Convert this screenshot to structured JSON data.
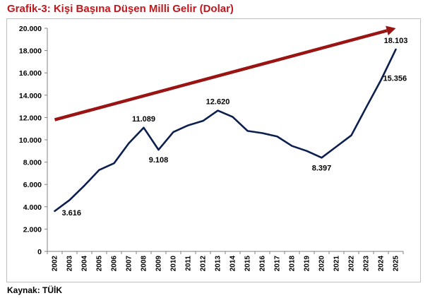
{
  "title": "Grafik-3: Kişi Başına Düşen Milli Gelir (Dolar)",
  "source": "Kaynak: TÜİK",
  "colors": {
    "title": "#c0171c",
    "line": "#0c1f4e",
    "arrow": "#9a1414",
    "axis": "#808080"
  },
  "chart_data": {
    "type": "line",
    "title": "Grafik-3: Kişi Başına Düşen Milli Gelir (Dolar)",
    "xlabel": "",
    "ylabel": "",
    "ylim": [
      0,
      20000
    ],
    "grid": false,
    "legend": "none",
    "yticks": [
      "0",
      "2.000",
      "4.000",
      "6.000",
      "8.000",
      "10.000",
      "12.000",
      "14.000",
      "16.000",
      "18.000",
      "20.000"
    ],
    "x": [
      "2002",
      "2003",
      "2004",
      "2005",
      "2006",
      "2007",
      "2008",
      "2009",
      "2010",
      "2011",
      "2012",
      "2013",
      "2014",
      "2015",
      "2016",
      "2017",
      "2018",
      "2019",
      "2020",
      "2021",
      "2022",
      "2023",
      "2024",
      "2025"
    ],
    "series": [
      {
        "values": [
          3616,
          4600,
          5900,
          7300,
          7900,
          9700,
          11089,
          9108,
          10700,
          11300,
          11700,
          12620,
          12050,
          10800,
          10600,
          10300,
          9450,
          9000,
          8397,
          9400,
          10400,
          12900,
          15356,
          18103
        ]
      }
    ],
    "data_labels": [
      {
        "index": 0,
        "text": "3.616",
        "pos": "below-right"
      },
      {
        "index": 6,
        "text": "11.089",
        "pos": "above"
      },
      {
        "index": 7,
        "text": "9.108",
        "pos": "below"
      },
      {
        "index": 11,
        "text": "12.620",
        "pos": "above"
      },
      {
        "index": 18,
        "text": "8.397",
        "pos": "below"
      },
      {
        "index": 22,
        "text": "15.356",
        "pos": "right"
      },
      {
        "index": 23,
        "text": "18.103",
        "pos": "above"
      }
    ],
    "trend_arrow": {
      "from": [
        2002,
        11800
      ],
      "to": [
        2025,
        20000
      ]
    }
  }
}
